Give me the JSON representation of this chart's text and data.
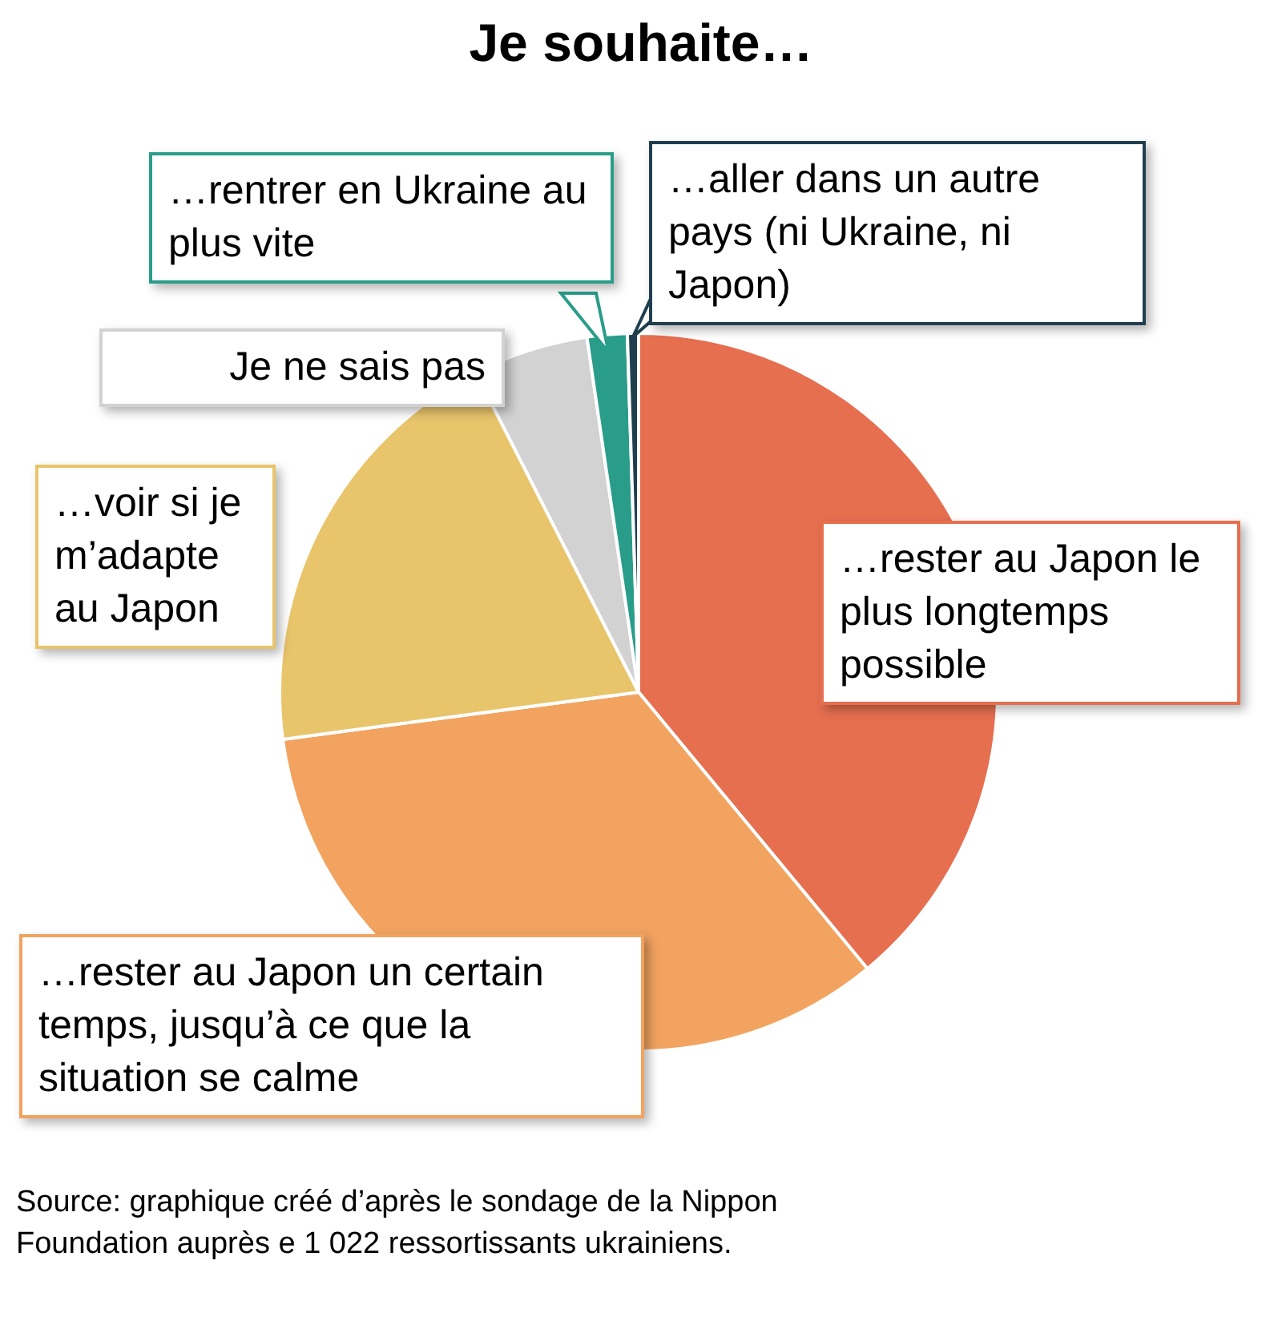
{
  "chart_data": {
    "type": "pie",
    "title": "Je souhaite…",
    "categories": [
      "…rester au Japon le plus longtemps possible",
      "…rester au Japon un certain temps, jusqu’à ce que la situation se calme",
      "…voir si je m’adapte au Japon",
      "Je ne sais pas",
      "…rentrer en Ukraine au plus vite",
      "…aller dans un autre pays (ni Ukraine, ni Japon)"
    ],
    "values": [
      39.0,
      33.9,
      19.6,
      5.2,
      1.8,
      0.5
    ],
    "colors": [
      "#e66f50",
      "#f2a35f",
      "#e8c46b",
      "#d2d2d2",
      "#2a9d8a",
      "#1f3f4f"
    ],
    "legend": false,
    "annotations": [
      "Source: graphique créé d’après le sondage de la Nippon Foundation auprès e 1 022 ressortissants ukrainiens."
    ]
  }
}
